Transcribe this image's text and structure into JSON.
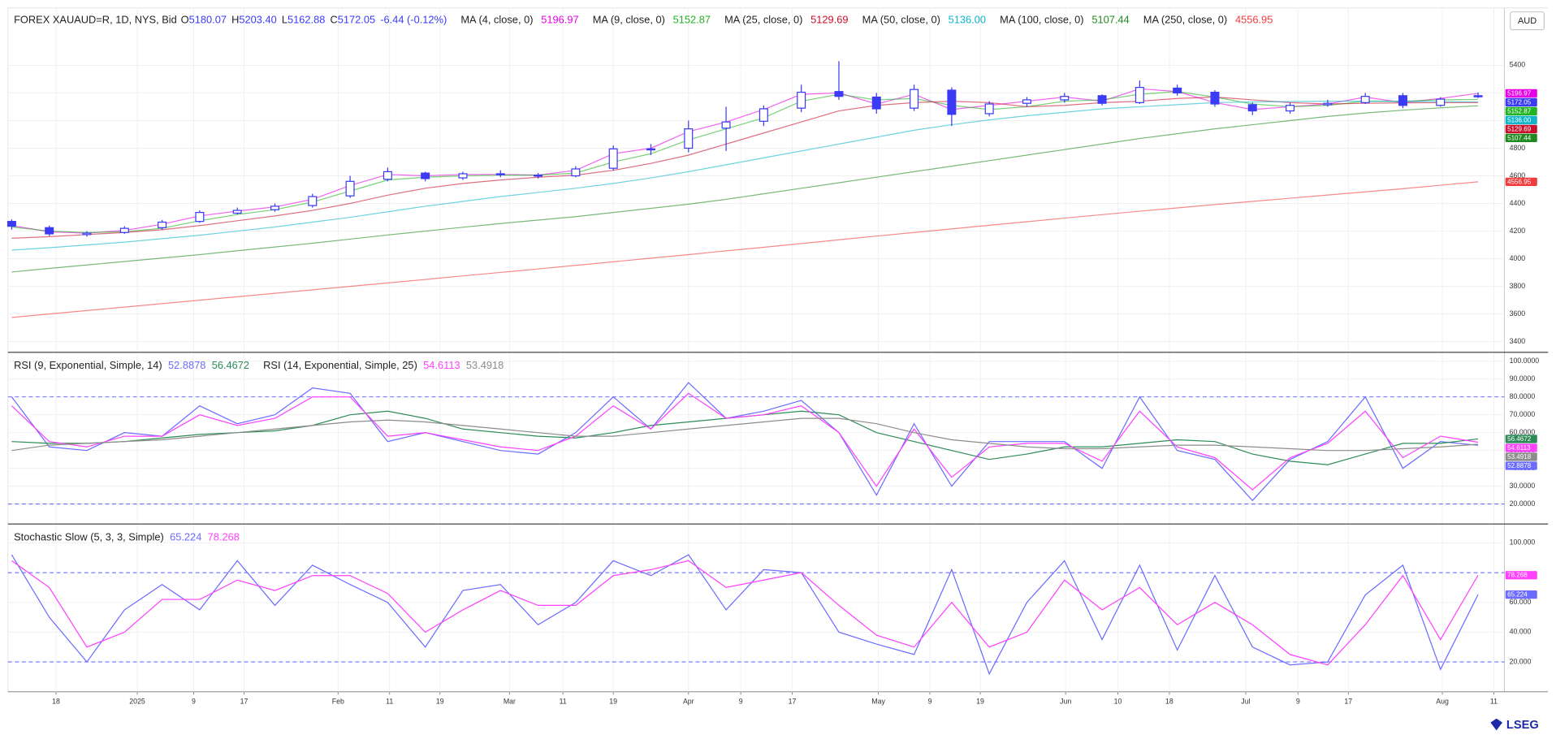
{
  "chart_data": [
    {
      "type": "candlestick",
      "title": "FOREX XAUAUD=R, 1D, NYS, Bid",
      "ohlc_header": [
        {
          "key": "O",
          "text": "5180.07"
        },
        {
          "key": "H",
          "text": "5203.40"
        },
        {
          "key": "L",
          "text": "5162.88"
        },
        {
          "key": "C",
          "text": "5172.05"
        }
      ],
      "change": "-6.44 (-0.12%)",
      "color": "#3b3bf5",
      "currency": "AUD",
      "open": [
        4270,
        4225,
        4175,
        4190,
        4225,
        4270,
        4330,
        4355,
        4385,
        4455,
        4575,
        4620,
        4585,
        4615,
        4605,
        4600,
        4655,
        4790,
        4800,
        4945,
        4995,
        5090,
        5210,
        5170,
        5090,
        5220,
        5050,
        5125,
        5150,
        5180,
        5130,
        5235,
        5205,
        5115,
        5070,
        5115,
        5130,
        5180,
        5110,
        5180.07
      ],
      "high": [
        4285,
        4240,
        4200,
        4235,
        4280,
        4350,
        4370,
        4400,
        4470,
        4600,
        4660,
        4630,
        4630,
        4640,
        4620,
        4670,
        4820,
        4830,
        5000,
        5100,
        5110,
        5260,
        5430,
        5200,
        5260,
        5240,
        5140,
        5170,
        5200,
        5190,
        5290,
        5260,
        5220,
        5130,
        5130,
        5150,
        5200,
        5200,
        5170,
        5203.4
      ],
      "low": [
        4210,
        4165,
        4160,
        4180,
        4210,
        4260,
        4320,
        4340,
        4370,
        4440,
        4560,
        4560,
        4570,
        4590,
        4580,
        4590,
        4640,
        4750,
        4770,
        4780,
        4960,
        5060,
        5150,
        5050,
        5070,
        4960,
        5030,
        5100,
        5130,
        5110,
        5120,
        5180,
        5100,
        5040,
        5050,
        5100,
        5120,
        5090,
        5100,
        5162.88
      ],
      "close": [
        4235,
        4180,
        4185,
        4220,
        4265,
        4335,
        4350,
        4380,
        4450,
        4560,
        4630,
        4580,
        4615,
        4610,
        4600,
        4650,
        4795,
        4795,
        4940,
        4990,
        5085,
        5205,
        5175,
        5085,
        5225,
        5045,
        5120,
        5150,
        5175,
        5125,
        5240,
        5200,
        5120,
        5070,
        5110,
        5125,
        5175,
        5110,
        5155,
        5172.05
      ],
      "series": [
        {
          "name": "MA (4, close, 0)",
          "color": "#e600e6",
          "values": [
            4240,
            4195,
            4185,
            4205,
            4250,
            4310,
            4345,
            4375,
            4430,
            4530,
            4610,
            4600,
            4610,
            4610,
            4605,
            4640,
            4760,
            4800,
            4920,
            4990,
            5080,
            5190,
            5200,
            5120,
            5190,
            5080,
            5110,
            5140,
            5170,
            5140,
            5230,
            5210,
            5130,
            5080,
            5100,
            5120,
            5170,
            5130,
            5160,
            5196.97
          ]
        },
        {
          "name": "MA (9, close, 0)",
          "color": "#22b322",
          "values": [
            4230,
            4200,
            4190,
            4195,
            4220,
            4275,
            4320,
            4355,
            4410,
            4490,
            4570,
            4590,
            4600,
            4605,
            4605,
            4620,
            4700,
            4760,
            4860,
            4940,
            5020,
            5140,
            5190,
            5150,
            5160,
            5110,
            5080,
            5100,
            5140,
            5150,
            5190,
            5210,
            5170,
            5120,
            5100,
            5110,
            5140,
            5140,
            5150,
            5152.87
          ]
        },
        {
          "name": "MA (25, close, 0)",
          "color": "#c8102e",
          "values": [
            4148,
            4160,
            4175,
            4190,
            4210,
            4240,
            4275,
            4310,
            4350,
            4400,
            4460,
            4510,
            4545,
            4570,
            4590,
            4605,
            4640,
            4690,
            4750,
            4830,
            4910,
            4990,
            5070,
            5110,
            5130,
            5140,
            5130,
            5100,
            5110,
            5130,
            5140,
            5160,
            5170,
            5150,
            5130,
            5120,
            5125,
            5128,
            5130,
            5129.69
          ]
        },
        {
          "name": "MA (50, close, 0)",
          "color": "#10b5c9",
          "last_label": "5136.00",
          "values": [
            4062,
            4080,
            4100,
            4120,
            4145,
            4170,
            4200,
            4230,
            4265,
            4300,
            4340,
            4380,
            4415,
            4450,
            4480,
            4510,
            4545,
            4585,
            4630,
            4680,
            4730,
            4780,
            4830,
            4880,
            4930,
            4970,
            5005,
            5035,
            5060,
            5085,
            5100,
            5115,
            5130,
            5135,
            5138,
            5140,
            5140,
            5138,
            5137,
            5136
          ]
        },
        {
          "name": "MA (100, close, 0)",
          "color": "#1f8a1f",
          "values": [
            3904,
            3930,
            3955,
            3980,
            4005,
            4030,
            4058,
            4085,
            4112,
            4142,
            4172,
            4200,
            4228,
            4255,
            4280,
            4305,
            4335,
            4365,
            4395,
            4430,
            4470,
            4510,
            4550,
            4590,
            4630,
            4670,
            4710,
            4750,
            4790,
            4830,
            4870,
            4905,
            4940,
            4970,
            5000,
            5030,
            5055,
            5075,
            5092,
            5107.44
          ]
        },
        {
          "name": "MA (250, close, 0)",
          "color": "#f03c3c",
          "values": [
            3575,
            3600,
            3625,
            3650,
            3675,
            3700,
            3725,
            3750,
            3775,
            3800,
            3825,
            3850,
            3876,
            3901,
            3926,
            3952,
            3978,
            4004,
            4030,
            4057,
            4083,
            4110,
            4137,
            4164,
            4190,
            4216,
            4242,
            4268,
            4294,
            4319,
            4344,
            4368,
            4392,
            4415,
            4438,
            4461,
            4484,
            4507,
            4532,
            4556.95
          ]
        }
      ],
      "ylim": [
        3330,
        5815
      ],
      "yticks": [
        3400,
        3600,
        3800,
        4000,
        4200,
        4400,
        4600,
        4800,
        5000,
        5200,
        5400
      ],
      "grid": true
    },
    {
      "type": "line",
      "series": [
        {
          "name": "RSI (9, Exponential, Simple, 14)",
          "color": "#6b6bff",
          "values": [
            80,
            52,
            50,
            60,
            58,
            75,
            65,
            70,
            85,
            82,
            55,
            60,
            55,
            50,
            48,
            60,
            80,
            62,
            88,
            68,
            72,
            78,
            60,
            25,
            65,
            30,
            55,
            55,
            55,
            40,
            80,
            50,
            45,
            22,
            45,
            55,
            80,
            40,
            55,
            52.8878
          ]
        },
        {
          "color": "#2e8b57",
          "values": [
            55,
            54,
            54,
            55,
            57,
            59,
            60,
            61,
            64,
            70,
            72,
            68,
            62,
            60,
            58,
            57,
            60,
            64,
            66,
            68,
            70,
            72,
            70,
            60,
            55,
            50,
            45,
            48,
            52,
            52,
            54,
            56,
            55,
            48,
            44,
            42,
            48,
            54,
            54,
            56.4672
          ]
        },
        {
          "name": "RSI (14, Exponential, Simple, 25)",
          "color": "#ff40ff",
          "values": [
            75,
            55,
            52,
            58,
            58,
            70,
            64,
            68,
            80,
            80,
            58,
            60,
            56,
            52,
            50,
            58,
            75,
            62,
            82,
            68,
            70,
            75,
            60,
            30,
            62,
            35,
            52,
            54,
            54,
            44,
            72,
            52,
            46,
            28,
            46,
            54,
            72,
            46,
            58,
            54.6113
          ]
        },
        {
          "color": "#8c8c8c",
          "values": [
            50,
            53,
            54,
            55,
            56,
            58,
            60,
            62,
            64,
            66,
            67,
            66,
            64,
            62,
            60,
            58,
            58,
            60,
            62,
            64,
            66,
            68,
            68,
            65,
            60,
            56,
            54,
            52,
            51,
            51,
            52,
            53,
            53,
            52,
            51,
            50,
            50,
            51,
            52,
            53.4918
          ]
        }
      ],
      "levels": [
        80,
        20
      ],
      "ylim": [
        9.4,
        104.4
      ],
      "yticks": [
        {
          "value": 20,
          "label": "20.0000"
        },
        {
          "value": 30,
          "label": "30.0000"
        },
        {
          "value": 40,
          "label": "40.0000"
        },
        {
          "value": 50,
          "label": "50.0000"
        },
        {
          "value": 60,
          "label": "60.0000"
        },
        {
          "value": 70,
          "label": "70.0000"
        },
        {
          "value": 80,
          "label": "80.0000"
        },
        {
          "value": 90,
          "label": "90.0000"
        },
        {
          "value": 100,
          "label": "100.0000"
        }
      ],
      "grid": true
    },
    {
      "type": "line",
      "series": [
        {
          "name": "Stochastic Slow (5, 3, 3, Simple)",
          "color": "#6b6bff",
          "values": [
            92,
            50,
            20,
            55,
            72,
            55,
            88,
            58,
            85,
            72,
            60,
            30,
            68,
            72,
            45,
            60,
            88,
            78,
            92,
            55,
            82,
            80,
            40,
            32,
            25,
            82,
            12,
            60,
            88,
            35,
            85,
            28,
            78,
            30,
            18,
            20,
            65,
            85,
            15,
            65.224
          ]
        },
        {
          "color": "#ff40ff",
          "values": [
            88,
            70,
            30,
            40,
            62,
            62,
            75,
            68,
            78,
            78,
            66,
            40,
            55,
            68,
            58,
            58,
            78,
            82,
            88,
            70,
            75,
            80,
            58,
            38,
            30,
            60,
            30,
            40,
            75,
            55,
            70,
            45,
            60,
            45,
            25,
            18,
            45,
            78,
            35,
            78.268
          ]
        }
      ],
      "levels": [
        80,
        20
      ],
      "ylim": [
        0,
        112
      ],
      "yticks": [
        {
          "value": 20,
          "label": "20.000"
        },
        {
          "value": 40,
          "label": "40.000"
        },
        {
          "value": 60,
          "label": "60.000"
        },
        {
          "value": 100,
          "label": "100.000"
        }
      ],
      "grid": true,
      "xlim": [
        -0.1,
        39.7
      ],
      "xticks": [
        {
          "value": 1.18,
          "label": "18"
        },
        {
          "value": 3.34,
          "label": "2025"
        },
        {
          "value": 4.84,
          "label": "9"
        },
        {
          "value": 6.18,
          "label": "17"
        },
        {
          "value": 8.68,
          "label": "Feb"
        },
        {
          "value": 10.05,
          "label": "11"
        },
        {
          "value": 11.39,
          "label": "19"
        },
        {
          "value": 13.24,
          "label": "Mar"
        },
        {
          "value": 14.66,
          "label": "11"
        },
        {
          "value": 16,
          "label": "19"
        },
        {
          "value": 18,
          "label": "Apr"
        },
        {
          "value": 19.39,
          "label": "9"
        },
        {
          "value": 20.76,
          "label": "17"
        },
        {
          "value": 23.05,
          "label": "May"
        },
        {
          "value": 24.42,
          "label": "9"
        },
        {
          "value": 25.76,
          "label": "19"
        },
        {
          "value": 28.03,
          "label": "Jun"
        },
        {
          "value": 29.42,
          "label": "10"
        },
        {
          "value": 30.79,
          "label": "18"
        },
        {
          "value": 32.82,
          "label": "Jul"
        },
        {
          "value": 34.21,
          "label": "9"
        },
        {
          "value": 35.55,
          "label": "17"
        },
        {
          "value": 38.05,
          "label": "Aug"
        },
        {
          "value": 39.42,
          "label": "11"
        }
      ]
    }
  ],
  "branding": "LSEG"
}
